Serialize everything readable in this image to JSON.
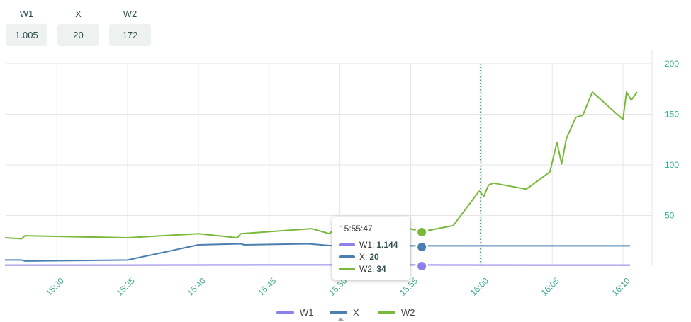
{
  "stats": [
    {
      "label": "W1",
      "value": "1.005"
    },
    {
      "label": "X",
      "value": "20"
    },
    {
      "label": "W2",
      "value": "172"
    }
  ],
  "tooltip": {
    "time": "15:55:47",
    "rows": [
      {
        "name": "W1",
        "value": "1.144",
        "color": "#8a82e8"
      },
      {
        "name": "X",
        "value": "20",
        "color": "#4a7fb0"
      },
      {
        "name": "W2",
        "value": "34",
        "color": "#7ab83a"
      }
    ]
  },
  "colors": {
    "W1": "#8a82e8",
    "X": "#4a7fb0",
    "W2": "#7ab83a",
    "grid": "#e6e6e6",
    "axis_text": "#2bb38a",
    "marker": "#3aa88a"
  },
  "chart_data": {
    "type": "line",
    "xlabel": "",
    "ylabel": "",
    "x_ticks": [
      "15:30",
      "15:35",
      "15:40",
      "15:45",
      "15:50",
      "15:55",
      "16:00",
      "16:05",
      "16:10"
    ],
    "y_ticks": [
      50,
      100,
      150,
      200
    ],
    "xlim": [
      "15:26:20",
      "16:11:00"
    ],
    "ylim": [
      0,
      200
    ],
    "y_axis_side": "right",
    "grid": true,
    "legend_position": "bottom",
    "vertical_marker": "15:59:55",
    "hover_time": "15:55:47",
    "series": [
      {
        "name": "W1",
        "color": "#8a82e8",
        "points": [
          [
            "15:26:20",
            1.0
          ],
          [
            "15:35:00",
            1.0
          ],
          [
            "15:45:00",
            1.1
          ],
          [
            "15:55:47",
            1.144
          ],
          [
            "16:05:00",
            1.0
          ],
          [
            "16:10:30",
            1.005
          ]
        ]
      },
      {
        "name": "X",
        "color": "#4a7fb0",
        "points": [
          [
            "15:26:20",
            6
          ],
          [
            "15:27:30",
            6
          ],
          [
            "15:27:45",
            5
          ],
          [
            "15:35:00",
            6
          ],
          [
            "15:40:00",
            21
          ],
          [
            "15:43:00",
            22
          ],
          [
            "15:43:15",
            21
          ],
          [
            "15:47:45",
            22
          ],
          [
            "15:49:30",
            20
          ],
          [
            "15:55:47",
            20
          ],
          [
            "16:05:00",
            20
          ],
          [
            "16:10:30",
            20
          ]
        ]
      },
      {
        "name": "W2",
        "color": "#7ab83a",
        "points": [
          [
            "15:26:20",
            28
          ],
          [
            "15:27:30",
            27
          ],
          [
            "15:27:45",
            30
          ],
          [
            "15:35:00",
            28
          ],
          [
            "15:40:00",
            32
          ],
          [
            "15:42:45",
            28
          ],
          [
            "15:43:00",
            32
          ],
          [
            "15:48:00",
            37
          ],
          [
            "15:49:15",
            32
          ],
          [
            "15:49:40",
            37
          ],
          [
            "15:54:00",
            35
          ],
          [
            "15:54:40",
            38
          ],
          [
            "15:55:47",
            34
          ],
          [
            "15:58:00",
            40
          ],
          [
            "15:59:50",
            74
          ],
          [
            "16:00:10",
            69
          ],
          [
            "16:00:30",
            80
          ],
          [
            "16:00:50",
            82
          ],
          [
            "16:03:10",
            76
          ],
          [
            "16:04:50",
            93
          ],
          [
            "16:05:20",
            122
          ],
          [
            "16:05:40",
            101
          ],
          [
            "16:06:00",
            126
          ],
          [
            "16:06:40",
            147
          ],
          [
            "16:07:10",
            149
          ],
          [
            "16:07:50",
            172
          ],
          [
            "16:10:00",
            145
          ],
          [
            "16:10:15",
            172
          ],
          [
            "16:10:35",
            164
          ],
          [
            "16:11:00",
            172
          ]
        ]
      }
    ]
  },
  "legend": [
    {
      "name": "W1",
      "color": "#8a82e8"
    },
    {
      "name": "X",
      "color": "#4a7fb0"
    },
    {
      "name": "W2",
      "color": "#7ab83a"
    }
  ]
}
